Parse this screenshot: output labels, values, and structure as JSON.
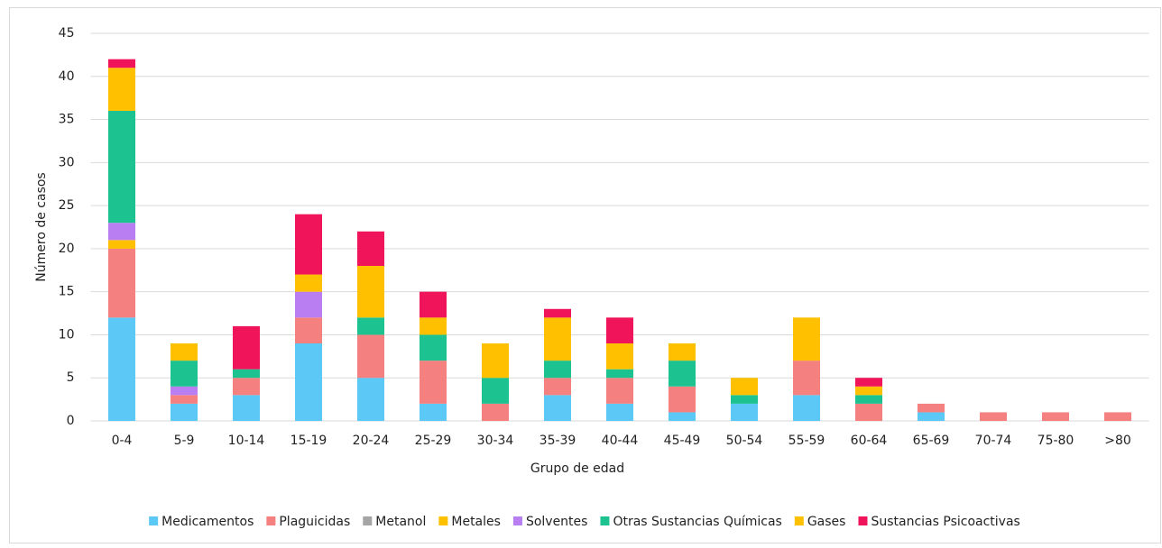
{
  "chart_data": {
    "type": "stacked_bar",
    "x_label": "Grupo de edad",
    "y_label": "Número de casos",
    "categories": [
      "0-4",
      "5-9",
      "10-14",
      "15-19",
      "20-24",
      "25-29",
      "30-34",
      "35-39",
      "40-44",
      "45-49",
      "50-54",
      "55-59",
      "60-64",
      "65-69",
      "70-74",
      "75-80",
      ">80"
    ],
    "series": [
      {
        "name": "Medicamentos",
        "color": "#5cc8f5",
        "values": [
          12,
          2,
          3,
          9,
          5,
          2,
          0,
          3,
          2,
          1,
          2,
          3,
          0,
          1,
          0,
          0,
          0
        ]
      },
      {
        "name": "Plaguicidas",
        "color": "#f4817f",
        "values": [
          8,
          1,
          2,
          3,
          5,
          5,
          2,
          2,
          3,
          3,
          0,
          4,
          2,
          1,
          1,
          1,
          1
        ]
      },
      {
        "name": "Metanol",
        "color": "#a5a5a5",
        "values": [
          0,
          0,
          0,
          0,
          0,
          0,
          0,
          0,
          0,
          0,
          0,
          0,
          0,
          0,
          0,
          0,
          0
        ]
      },
      {
        "name": "Metales",
        "color": "#ffc000",
        "values": [
          1,
          0,
          0,
          0,
          0,
          0,
          0,
          0,
          0,
          0,
          0,
          0,
          0,
          0,
          0,
          0,
          0
        ]
      },
      {
        "name": "Solventes",
        "color": "#b97ff2",
        "values": [
          2,
          1,
          0,
          3,
          0,
          0,
          0,
          0,
          0,
          0,
          0,
          0,
          0,
          0,
          0,
          0,
          0
        ]
      },
      {
        "name": "Otras Sustancias Químicas",
        "color": "#1cc28f",
        "values": [
          13,
          3,
          1,
          0,
          2,
          3,
          3,
          2,
          1,
          3,
          1,
          0,
          1,
          0,
          0,
          0,
          0
        ]
      },
      {
        "name": "Gases",
        "color": "#ffc000",
        "values": [
          5,
          2,
          0,
          2,
          6,
          2,
          4,
          5,
          3,
          2,
          2,
          5,
          1,
          0,
          0,
          0,
          0
        ]
      },
      {
        "name": "Sustancias Psicoactivas",
        "color": "#f0145a",
        "values": [
          1,
          0,
          5,
          7,
          4,
          3,
          0,
          1,
          3,
          0,
          0,
          0,
          1,
          0,
          0,
          0,
          0
        ]
      }
    ],
    "ylim": [
      0,
      45
    ],
    "yticks": [
      0,
      5,
      10,
      15,
      20,
      25,
      30,
      35,
      40,
      45
    ],
    "grid": true,
    "legend": "bottom"
  }
}
